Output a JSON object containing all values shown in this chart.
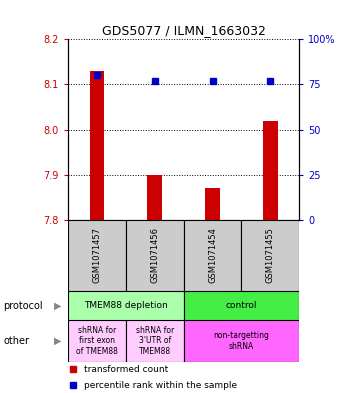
{
  "title": "GDS5077 / ILMN_1663032",
  "samples": [
    "GSM1071457",
    "GSM1071456",
    "GSM1071454",
    "GSM1071455"
  ],
  "transformed_counts": [
    8.13,
    7.9,
    7.87,
    8.02
  ],
  "percentile_ranks": [
    80,
    77,
    77,
    77
  ],
  "ylim_left": [
    7.8,
    8.2
  ],
  "ylim_right": [
    0,
    100
  ],
  "yticks_left": [
    7.8,
    7.9,
    8.0,
    8.1,
    8.2
  ],
  "yticks_right": [
    0,
    25,
    50,
    75,
    100
  ],
  "bar_color": "#cc0000",
  "dot_color": "#0000cc",
  "bar_base": 7.8,
  "protocol_labels": [
    "TMEM88 depletion",
    "control"
  ],
  "protocol_colors": [
    "#aaffaa",
    "#44ee44"
  ],
  "other_labels": [
    "shRNA for\nfirst exon\nof TMEM88",
    "shRNA for\n3'UTR of\nTMEM88",
    "non-targetting\nshRNA"
  ],
  "other_col1_color": "#ffccff",
  "other_col2_color": "#ffccff",
  "other_col3_color": "#ff66ff",
  "sample_box_color": "#cccccc",
  "tick_fontsize": 7,
  "title_fontsize": 9,
  "label_fontsize": 7
}
